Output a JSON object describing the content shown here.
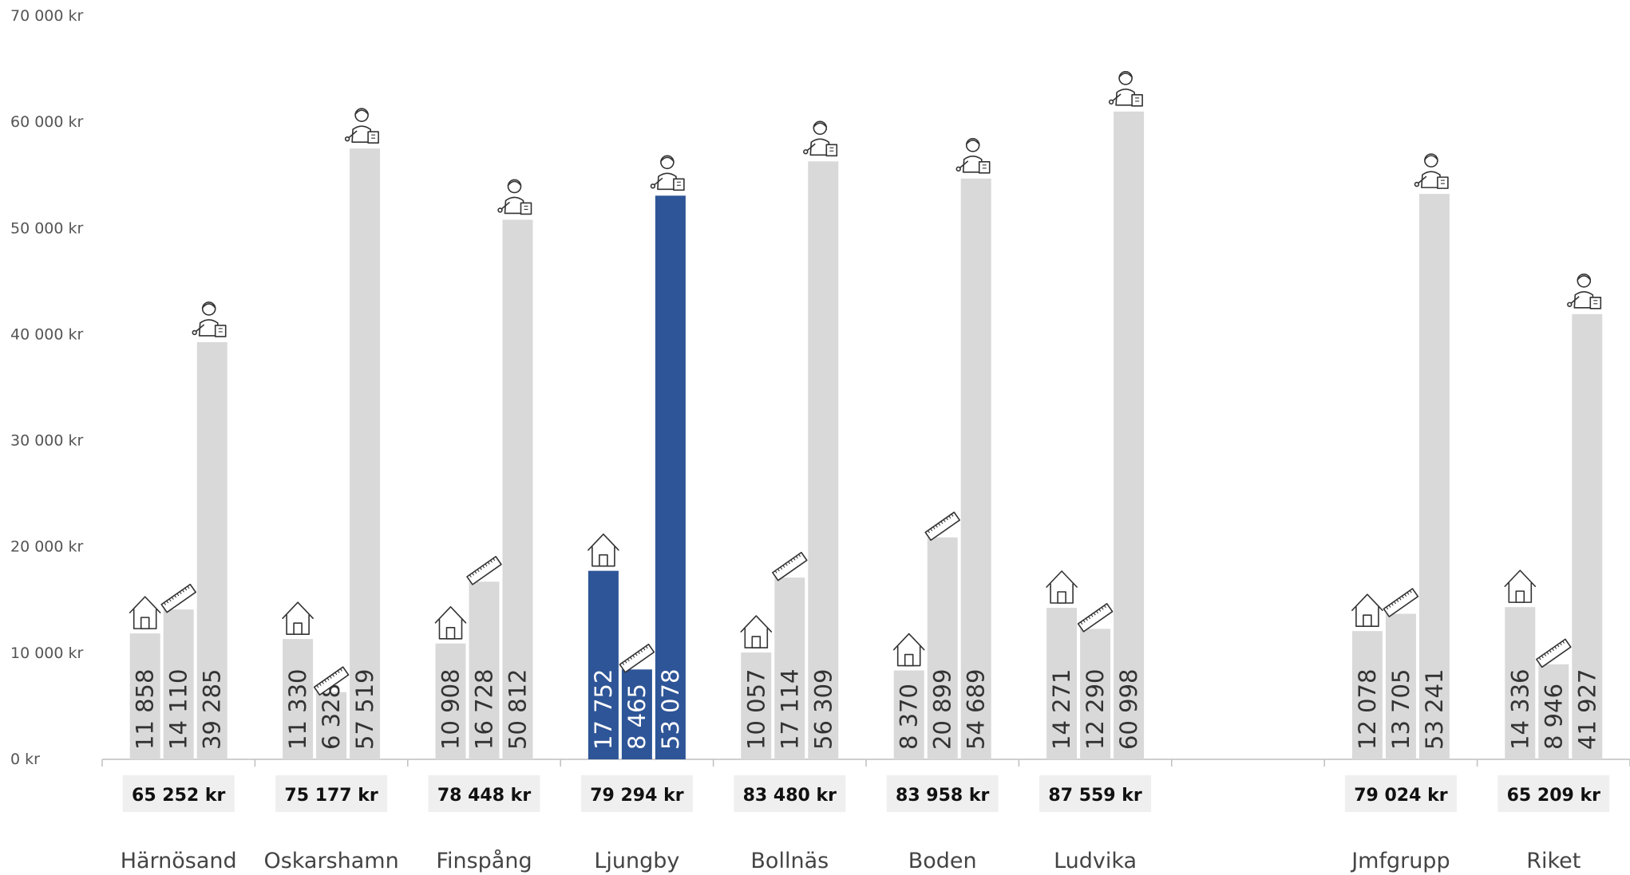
{
  "chart_data": {
    "type": "bar",
    "categories": [
      "Härnösand",
      "Oskarshamn",
      "Finspång",
      "Ljungby",
      "Bollnäs",
      "Boden",
      "Ludvika",
      "",
      "Jmfgrupp",
      "Riket"
    ],
    "series": [
      {
        "icon": "house-icon",
        "values": [
          11858,
          11330,
          10908,
          17752,
          10057,
          8370,
          14271,
          null,
          12078,
          14336
        ]
      },
      {
        "icon": "ruler-icon",
        "values": [
          14110,
          6328,
          16728,
          8465,
          17114,
          20899,
          12290,
          null,
          13705,
          8946
        ]
      },
      {
        "icon": "teacher-icon",
        "values": [
          39285,
          57519,
          50812,
          53078,
          56309,
          54689,
          60998,
          null,
          53241,
          41927
        ]
      }
    ],
    "value_labels": [
      [
        "11 858",
        "14 110",
        "39 285"
      ],
      [
        "11 330",
        "6 328",
        "57 519"
      ],
      [
        "10 908",
        "16 728",
        "50 812"
      ],
      [
        "17 752",
        "8 465",
        "53 078"
      ],
      [
        "10 057",
        "17 114",
        "56 309"
      ],
      [
        "8 370",
        "20 899",
        "54 689"
      ],
      [
        "14 271",
        "12 290",
        "60 998"
      ],
      [],
      [
        "12 078",
        "13 705",
        "53 241"
      ],
      [
        "14 336",
        "8 946",
        "41 927"
      ]
    ],
    "totals": [
      "65 252 kr",
      "75 177 kr",
      "78 448 kr",
      "79 294 kr",
      "83 480 kr",
      "83 958 kr",
      "87 559 kr",
      "",
      "79 024 kr",
      "65 209 kr"
    ],
    "y_ticks": [
      "0 kr",
      "10 000 kr",
      "20 000 kr",
      "30 000 kr",
      "40 000 kr",
      "50 000 kr",
      "60 000 kr",
      "70 000 kr"
    ],
    "ylim": [
      0,
      70000
    ],
    "grid": false,
    "highlight_index": 3,
    "colors": {
      "bar": "#d9d9d9",
      "highlight": "#2e5597",
      "total_box": "#efefef",
      "axis": "#bfbfbf",
      "label_dark": "#333333",
      "label_light": "#ffffff"
    }
  }
}
